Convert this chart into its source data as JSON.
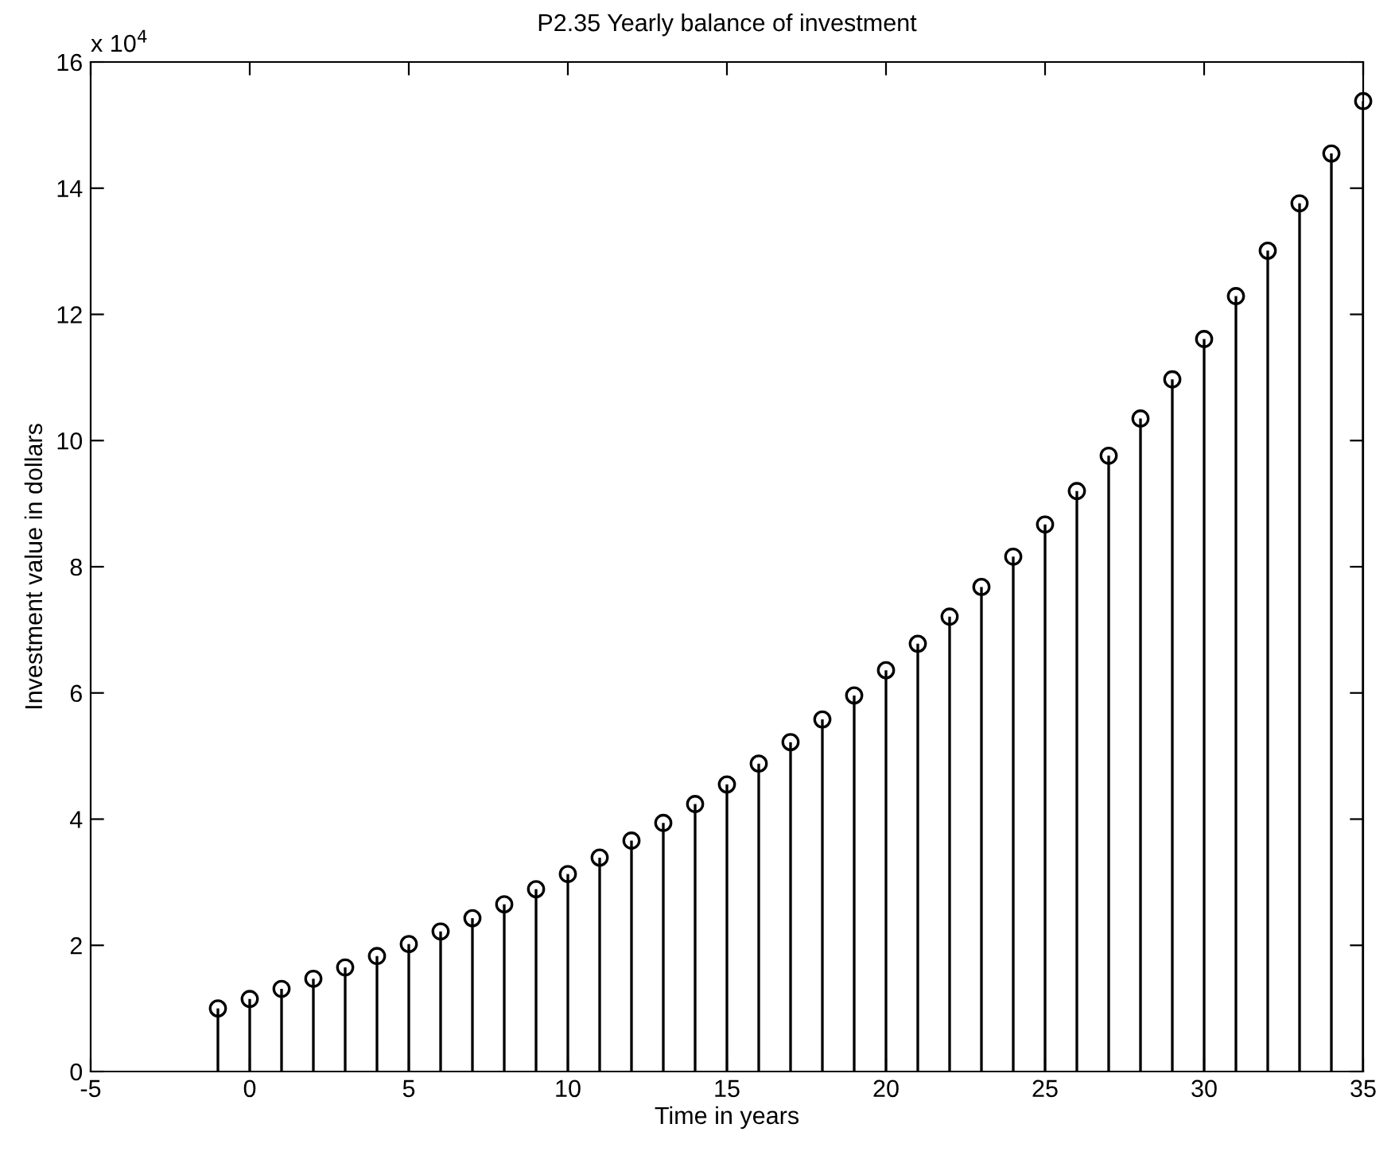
{
  "chart_data": {
    "type": "lollipop",
    "title": "P2.35 Yearly balance of investment",
    "xlabel": "Time in years",
    "ylabel": "Investment value in dollars",
    "annotations": [
      "x 10$^{4}$"
    ],
    "x": [
      -1,
      0,
      1,
      2,
      3,
      4,
      5,
      6,
      7,
      8,
      9,
      10,
      11,
      12,
      13,
      14,
      15,
      16,
      17,
      18,
      19,
      20,
      21,
      22,
      23,
      24,
      25,
      26,
      27,
      28,
      29,
      30,
      31,
      32,
      33,
      34,
      35
    ],
    "series": [
      {
        "color": "#000000",
        "values": [
          1.0,
          1.15,
          1.31,
          1.47,
          1.65,
          1.83,
          2.02,
          2.22,
          2.43,
          2.65,
          2.89,
          3.13,
          3.39,
          3.66,
          3.94,
          4.24,
          4.55,
          4.88,
          5.22,
          5.58,
          5.96,
          6.36,
          6.78,
          7.21,
          7.68,
          8.16,
          8.67,
          9.2,
          9.76,
          10.35,
          10.97,
          11.61,
          12.29,
          13.01,
          13.76,
          14.55,
          15.38
        ]
      }
    ],
    "marker": "circle",
    "xlim": [
      -5,
      35
    ],
    "xticks": [
      -5,
      0,
      5,
      10,
      15,
      20,
      25,
      30,
      35
    ],
    "ylim": [
      0,
      16
    ],
    "yticks": [
      0,
      2,
      4,
      6,
      8,
      10,
      12,
      14,
      16
    ]
  }
}
